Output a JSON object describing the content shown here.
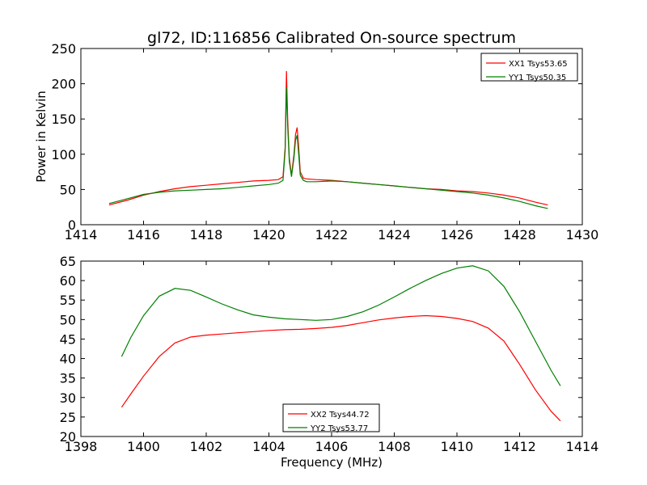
{
  "chart_data": [
    {
      "type": "line",
      "title": "gl72, ID:116856 Calibrated On-source spectrum",
      "xlabel": "",
      "ylabel": "Power in Kelvin",
      "xlim": [
        1414,
        1430
      ],
      "ylim": [
        0,
        250
      ],
      "xticks": [
        1414,
        1416,
        1418,
        1420,
        1422,
        1424,
        1426,
        1428,
        1430
      ],
      "yticks": [
        0,
        50,
        100,
        150,
        200,
        250
      ],
      "grid": false,
      "legend": "top-right",
      "series": [
        {
          "name": "XX1 Tsys53.65",
          "color": "#ff0000",
          "x": [
            1414.9,
            1415.5,
            1416.0,
            1416.5,
            1417.0,
            1417.5,
            1418.0,
            1418.5,
            1419.0,
            1419.5,
            1420.0,
            1420.3,
            1420.45,
            1420.52,
            1420.56,
            1420.6,
            1420.65,
            1420.72,
            1420.8,
            1420.85,
            1420.9,
            1420.95,
            1421.0,
            1421.1,
            1421.2,
            1421.5,
            1422.0,
            1422.5,
            1423.0,
            1423.5,
            1424.0,
            1424.5,
            1425.0,
            1425.5,
            1426.0,
            1426.5,
            1427.0,
            1427.5,
            1428.0,
            1428.5,
            1428.9
          ],
          "y": [
            28,
            35,
            42,
            47,
            51,
            54,
            56,
            58,
            60,
            62,
            63,
            64,
            68,
            110,
            218,
            150,
            95,
            70,
            100,
            128,
            138,
            110,
            75,
            66,
            65,
            64,
            63,
            61,
            59,
            57,
            55,
            53,
            51,
            50,
            48,
            47,
            45,
            42,
            38,
            32,
            28
          ]
        },
        {
          "name": "YY1 Tsys50.35",
          "color": "#008000",
          "x": [
            1414.9,
            1415.5,
            1416.0,
            1416.5,
            1417.0,
            1417.5,
            1418.0,
            1418.5,
            1419.0,
            1419.5,
            1420.0,
            1420.3,
            1420.45,
            1420.52,
            1420.56,
            1420.6,
            1420.65,
            1420.72,
            1420.8,
            1420.85,
            1420.9,
            1420.95,
            1421.0,
            1421.1,
            1421.2,
            1421.5,
            1422.0,
            1422.5,
            1423.0,
            1423.5,
            1424.0,
            1424.5,
            1425.0,
            1425.5,
            1426.0,
            1426.5,
            1427.0,
            1427.5,
            1428.0,
            1428.5,
            1428.9
          ],
          "y": [
            30,
            37,
            43,
            46,
            48,
            49,
            50,
            51,
            53,
            55,
            57,
            59,
            63,
            105,
            195,
            140,
            90,
            68,
            95,
            120,
            127,
            100,
            70,
            63,
            61,
            61,
            62,
            61,
            59,
            57,
            55,
            53,
            51,
            49,
            47,
            45,
            42,
            38,
            33,
            27,
            23
          ]
        }
      ]
    },
    {
      "type": "line",
      "title": "",
      "xlabel": "Frequency (MHz)",
      "ylabel": "",
      "xlim": [
        1398,
        1414
      ],
      "ylim": [
        20,
        65
      ],
      "xticks": [
        1398,
        1400,
        1402,
        1404,
        1406,
        1408,
        1410,
        1412,
        1414
      ],
      "yticks": [
        20,
        25,
        30,
        35,
        40,
        45,
        50,
        55,
        60,
        65
      ],
      "grid": false,
      "legend": "bottom-center",
      "series": [
        {
          "name": "XX2 Tsys44.72",
          "color": "#ff0000",
          "x": [
            1399.3,
            1399.6,
            1400.0,
            1400.5,
            1401.0,
            1401.5,
            1402.0,
            1402.5,
            1403.0,
            1403.5,
            1404.0,
            1404.5,
            1405.0,
            1405.5,
            1406.0,
            1406.5,
            1407.0,
            1407.5,
            1408.0,
            1408.5,
            1409.0,
            1409.5,
            1410.0,
            1410.5,
            1411.0,
            1411.5,
            1412.0,
            1412.5,
            1413.0,
            1413.3
          ],
          "y": [
            27.5,
            31,
            35.5,
            40.5,
            44,
            45.5,
            46,
            46.3,
            46.6,
            46.9,
            47.2,
            47.4,
            47.5,
            47.7,
            48,
            48.5,
            49.2,
            49.9,
            50.4,
            50.8,
            51,
            50.8,
            50.3,
            49.5,
            47.8,
            44.5,
            38.5,
            32,
            26.5,
            24
          ]
        },
        {
          "name": "YY2 Tsys53.77",
          "color": "#008000",
          "x": [
            1399.3,
            1399.6,
            1400.0,
            1400.5,
            1401.0,
            1401.5,
            1402.0,
            1402.5,
            1403.0,
            1403.5,
            1404.0,
            1404.5,
            1405.0,
            1405.5,
            1406.0,
            1406.5,
            1407.0,
            1407.5,
            1408.0,
            1408.5,
            1409.0,
            1409.5,
            1410.0,
            1410.5,
            1411.0,
            1411.5,
            1412.0,
            1412.5,
            1413.0,
            1413.3
          ],
          "y": [
            40.5,
            45.5,
            51,
            56,
            58,
            57.5,
            55.8,
            54,
            52.5,
            51.2,
            50.6,
            50.2,
            50,
            49.8,
            50,
            50.8,
            52,
            53.7,
            55.8,
            58,
            60,
            61.8,
            63.2,
            63.8,
            62.5,
            58.5,
            52,
            44.5,
            37,
            33
          ]
        }
      ]
    }
  ]
}
